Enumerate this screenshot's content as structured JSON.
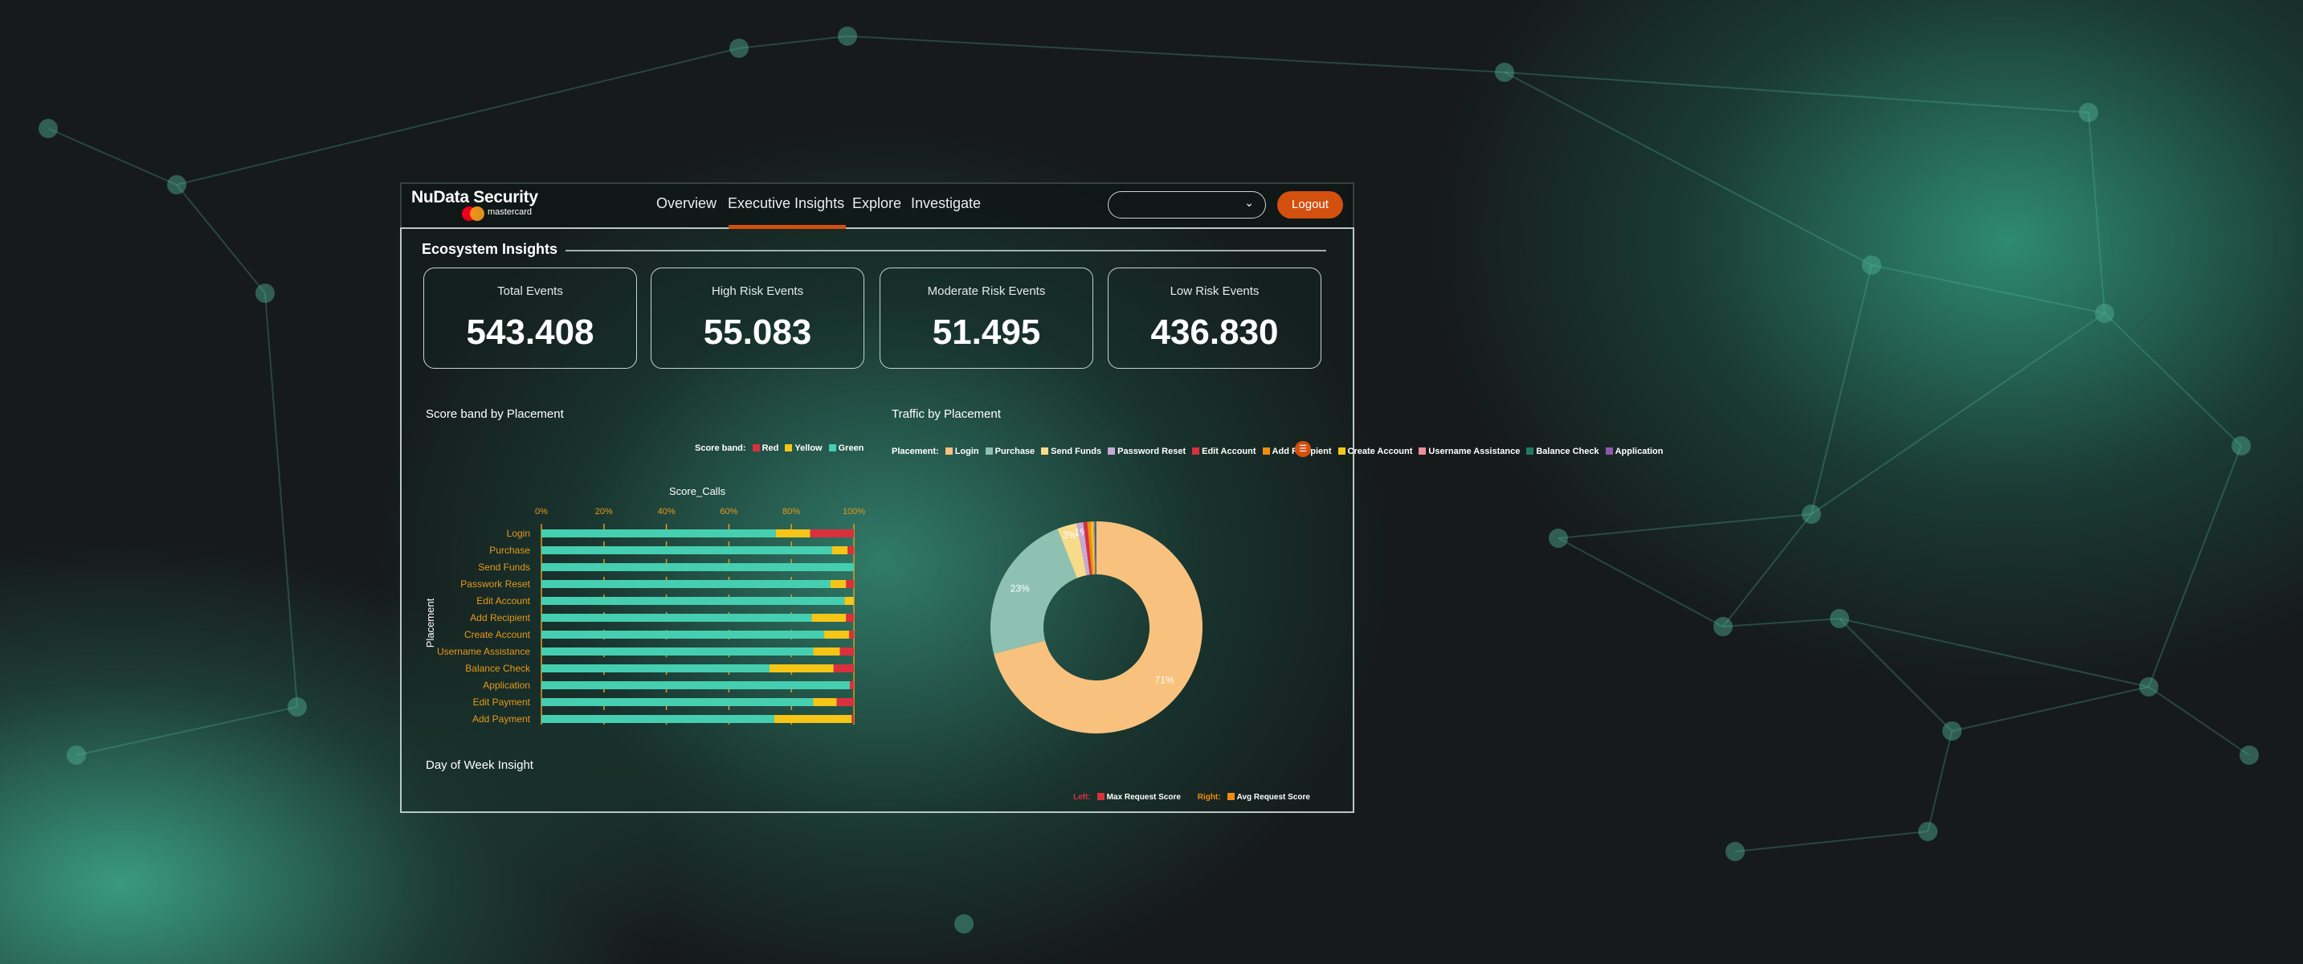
{
  "header": {
    "brand": "NuData Security",
    "brand_sub": "mastercard",
    "nav": [
      "Overview",
      "Executive Insights",
      "Explore",
      "Investigate"
    ],
    "active_nav": "Executive Insights",
    "dropdown_value": "",
    "logout": "Logout"
  },
  "section_title": "Ecosystem Insights",
  "stats": [
    {
      "label": "Total Events",
      "value": "543.408"
    },
    {
      "label": "High Risk Events",
      "value": "55.083"
    },
    {
      "label": "Moderate Risk Events",
      "value": "51.495"
    },
    {
      "label": "Low Risk Events",
      "value": "436.830"
    }
  ],
  "colors": {
    "accent": "#d4500f",
    "green": "#45cfb0",
    "yellow": "#f5c518",
    "red": "#d9303e",
    "axis": "#e59a1a"
  },
  "chart_data": [
    {
      "type": "bar",
      "stacked": "percent",
      "orientation": "horizontal",
      "title": "Score band by Placement",
      "xlabel": "Score_Calls",
      "ylabel": "Placement",
      "legend_title": "Score band:",
      "legend_position": "top-right",
      "xticks": [
        "0%",
        "20%",
        "40%",
        "60%",
        "80%",
        "100%"
      ],
      "xlim": [
        0,
        100
      ],
      "categories": [
        "Login",
        "Purchase",
        "Send Funds",
        "Passwork Reset",
        "Edit Account",
        "Add Recipient",
        "Create Account",
        "Username Assistance",
        "Balance Check",
        "Application",
        "Edit Payment",
        "Add Payment"
      ],
      "series": [
        {
          "name": "Green",
          "color": "#45cfb0",
          "values": [
            75,
            93,
            100,
            92.5,
            97,
            86.5,
            90.5,
            87,
            73,
            98.7,
            87,
            74.5
          ]
        },
        {
          "name": "Yellow",
          "color": "#f5c518",
          "values": [
            11,
            5,
            0,
            5,
            3,
            11,
            8,
            8.5,
            20.5,
            0,
            7.5,
            24.8
          ]
        },
        {
          "name": "Red",
          "color": "#d9303e",
          "values": [
            14,
            2,
            0,
            2.5,
            0,
            2.5,
            1.5,
            4.5,
            6.5,
            1.3,
            5.5,
            0.7
          ]
        }
      ]
    },
    {
      "type": "pie",
      "donut": true,
      "title": "Traffic by Placement",
      "legend_title": "Placement:",
      "legend_position": "top",
      "slices": [
        {
          "name": "Login",
          "value": 71,
          "color": "#f8c27e",
          "label": "71%"
        },
        {
          "name": "Purchase",
          "value": 23,
          "color": "#8fc1b3",
          "label": "23%"
        },
        {
          "name": "Send Funds",
          "value": 3,
          "color": "#f6dc8a",
          "label": "3%"
        },
        {
          "name": "Password Reset",
          "value": 1,
          "color": "#c7a9d6",
          "label": "1%"
        },
        {
          "name": "Edit Account",
          "value": 0.6,
          "color": "#d9303e",
          "label": ""
        },
        {
          "name": "Add Recipient",
          "value": 0.5,
          "color": "#f28c0f",
          "label": ""
        },
        {
          "name": "Create Account",
          "value": 0.4,
          "color": "#f5c518",
          "label": ""
        },
        {
          "name": "Username Assistance",
          "value": 0.2,
          "color": "#e88f99",
          "label": ""
        },
        {
          "name": "Balance Check",
          "value": 0.2,
          "color": "#1f7a64",
          "label": ""
        },
        {
          "name": "Application",
          "value": 0.1,
          "color": "#8e5aa8",
          "label": ""
        }
      ]
    },
    {
      "type": "line",
      "title": "Day of Week Insight",
      "legend": [
        {
          "prefix": "Left:",
          "name": "Max Request Score",
          "color": "#d9303e"
        },
        {
          "prefix": "Right:",
          "name": "Avg Request Score",
          "color": "#f28c0f"
        }
      ]
    }
  ]
}
